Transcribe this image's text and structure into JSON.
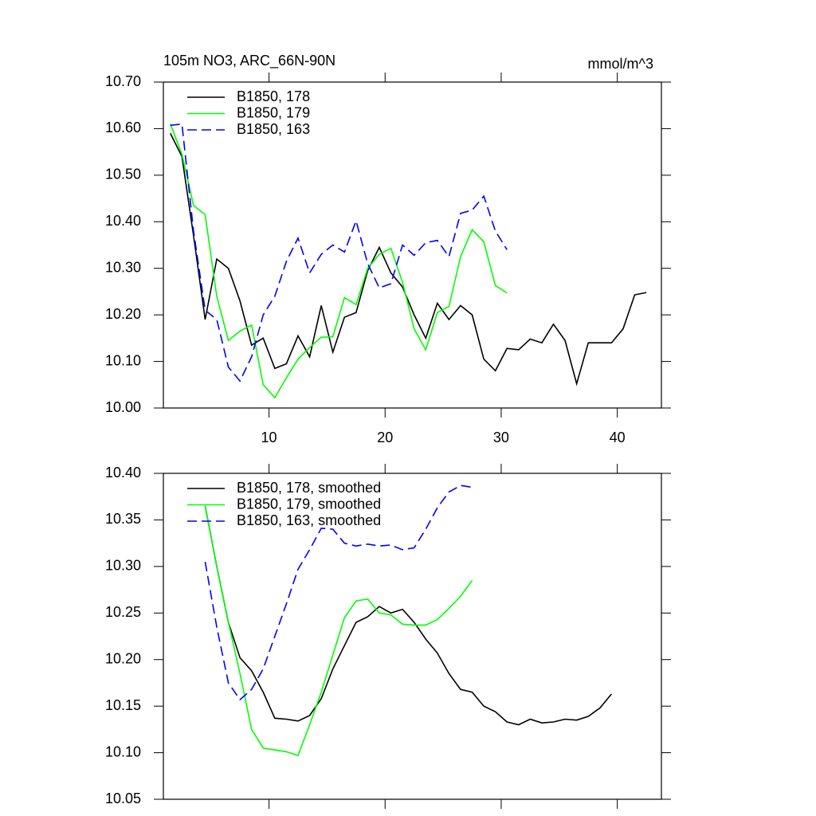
{
  "chart_data": [
    {
      "type": "line",
      "title": "105m NO3, ARC_66N-90N",
      "subtitle": "mmol/m^3",
      "xlim": [
        0.9,
        43.8
      ],
      "xticks": [
        10,
        20,
        30,
        40
      ],
      "ylim": [
        10.0,
        10.7
      ],
      "yticks": [
        {
          "value": 10.0,
          "label": "10.00"
        },
        {
          "value": 10.1,
          "label": "10.10"
        },
        {
          "value": 10.2,
          "label": "10.20"
        },
        {
          "value": 10.3,
          "label": "10.30"
        },
        {
          "value": 10.4,
          "label": "10.40"
        },
        {
          "value": 10.5,
          "label": "10.50"
        },
        {
          "value": 10.6,
          "label": "10.60"
        },
        {
          "value": 10.7,
          "label": "10.70"
        }
      ],
      "legend": "upper left",
      "series": [
        {
          "name": "B1850, 178",
          "color": "#000000",
          "dash": false,
          "x": [
            1.5,
            2.5,
            3.5,
            4.5,
            5.5,
            6.5,
            7.5,
            8.5,
            9.5,
            10.5,
            11.5,
            12.5,
            13.5,
            14.5,
            15.5,
            16.5,
            17.5,
            18.5,
            19.5,
            20.5,
            21.5,
            22.5,
            23.5,
            24.5,
            25.5,
            26.5,
            27.5,
            28.5,
            29.5,
            30.5,
            31.5,
            32.5,
            33.5,
            34.5,
            35.5,
            36.5,
            37.5,
            38.5,
            39.5,
            40.5,
            41.5,
            42.5
          ],
          "values": [
            10.59,
            10.54,
            10.37,
            10.19,
            10.32,
            10.3,
            10.23,
            10.135,
            10.15,
            10.085,
            10.095,
            10.155,
            10.11,
            10.22,
            10.12,
            10.195,
            10.205,
            10.295,
            10.345,
            10.29,
            10.26,
            10.2,
            10.15,
            10.225,
            10.19,
            10.22,
            10.2,
            10.105,
            10.08,
            10.128,
            10.125,
            10.148,
            10.14,
            10.18,
            10.145,
            10.052,
            10.14,
            10.14,
            10.14,
            10.17,
            10.243,
            10.248
          ]
        },
        {
          "name": "B1850, 179",
          "color": "#00ff00",
          "dash": false,
          "x": [
            1.5,
            2.5,
            3.5,
            4.5,
            5.5,
            6.5,
            7.5,
            8.5,
            9.5,
            10.5,
            11.5,
            12.5,
            13.5,
            14.5,
            15.5,
            16.5,
            17.5,
            18.5,
            19.5,
            20.5,
            21.5,
            22.5,
            23.5,
            24.5,
            25.5,
            26.5,
            27.5,
            28.5,
            29.5,
            30.5
          ],
          "values": [
            10.61,
            10.545,
            10.435,
            10.415,
            10.24,
            10.145,
            10.165,
            10.178,
            10.05,
            10.022,
            10.065,
            10.105,
            10.13,
            10.152,
            10.153,
            10.237,
            10.222,
            10.3,
            10.33,
            10.343,
            10.27,
            10.17,
            10.125,
            10.205,
            10.218,
            10.325,
            10.383,
            10.357,
            10.263,
            10.247
          ]
        },
        {
          "name": "B1850, 163",
          "color": "#0000ff",
          "dash": true,
          "x": [
            1.5,
            2.5,
            3.5,
            4.5,
            5.5,
            6.5,
            7.5,
            8.5,
            9.5,
            10.5,
            11.5,
            12.5,
            13.5,
            14.5,
            15.5,
            16.5,
            17.5,
            18.5,
            19.5,
            20.5,
            21.5,
            22.5,
            23.5,
            24.5,
            25.5,
            26.5,
            27.5,
            28.5,
            29.5,
            30.5
          ],
          "values": [
            10.607,
            10.61,
            10.38,
            10.21,
            10.19,
            10.088,
            10.058,
            10.11,
            10.2,
            10.24,
            10.315,
            10.365,
            10.29,
            10.33,
            10.35,
            10.335,
            10.402,
            10.31,
            10.258,
            10.267,
            10.35,
            10.328,
            10.355,
            10.36,
            10.325,
            10.418,
            10.425,
            10.455,
            10.38,
            10.34
          ]
        }
      ]
    },
    {
      "type": "line",
      "xlim": [
        0.9,
        43.8
      ],
      "xticks": [
        10,
        20,
        30,
        40
      ],
      "ylim": [
        10.05,
        10.4
      ],
      "yticks": [
        {
          "value": 10.05,
          "label": "10.05"
        },
        {
          "value": 10.1,
          "label": "10.10"
        },
        {
          "value": 10.15,
          "label": "10.15"
        },
        {
          "value": 10.2,
          "label": "10.20"
        },
        {
          "value": 10.25,
          "label": "10.25"
        },
        {
          "value": 10.3,
          "label": "10.30"
        },
        {
          "value": 10.35,
          "label": "10.35"
        },
        {
          "value": 10.4,
          "label": "10.40"
        }
      ],
      "legend": "upper left",
      "series": [
        {
          "name": "B1850, 178, smoothed",
          "color": "#000000",
          "dash": false,
          "x": [
            4.5,
            5.5,
            6.5,
            7.5,
            8.5,
            9.5,
            10.5,
            11.5,
            12.5,
            13.5,
            14.5,
            15.5,
            16.5,
            17.5,
            18.5,
            19.5,
            20.5,
            21.5,
            22.5,
            23.5,
            24.5,
            25.5,
            26.5,
            27.5,
            28.5,
            29.5,
            30.5,
            31.5,
            32.5,
            33.5,
            34.5,
            35.5,
            36.5,
            37.5,
            38.5,
            39.5
          ],
          "values": [
            10.365,
            10.3,
            10.24,
            10.202,
            10.188,
            10.165,
            10.137,
            10.136,
            10.134,
            10.14,
            10.158,
            10.19,
            10.215,
            10.24,
            10.246,
            10.257,
            10.25,
            10.254,
            10.24,
            10.222,
            10.207,
            10.185,
            10.168,
            10.165,
            10.15,
            10.144,
            10.133,
            10.13,
            10.136,
            10.132,
            10.133,
            10.136,
            10.135,
            10.139,
            10.148,
            10.163
          ]
        },
        {
          "name": "B1850, 179, smoothed",
          "color": "#00ff00",
          "dash": false,
          "x": [
            4.5,
            5.5,
            6.5,
            7.5,
            8.5,
            9.5,
            10.5,
            11.5,
            12.5,
            13.5,
            14.5,
            15.5,
            16.5,
            17.5,
            18.5,
            19.5,
            20.5,
            21.5,
            22.5,
            23.5,
            24.5,
            25.5,
            26.5,
            27.5
          ],
          "values": [
            10.365,
            10.3,
            10.24,
            10.185,
            10.125,
            10.105,
            10.103,
            10.101,
            10.097,
            10.13,
            10.165,
            10.205,
            10.245,
            10.263,
            10.265,
            10.25,
            10.248,
            10.238,
            10.237,
            10.237,
            10.243,
            10.255,
            10.268,
            10.285
          ]
        },
        {
          "name": "B1850, 163, smoothed",
          "color": "#0000ff",
          "dash": true,
          "x": [
            4.5,
            5.5,
            6.5,
            7.5,
            8.5,
            9.5,
            10.5,
            11.5,
            12.5,
            13.5,
            14.5,
            15.5,
            16.5,
            17.5,
            18.5,
            19.5,
            20.5,
            21.5,
            22.5,
            23.5,
            24.5,
            25.5,
            26.5,
            27.5
          ],
          "values": [
            10.305,
            10.235,
            10.175,
            10.157,
            10.168,
            10.19,
            10.225,
            10.26,
            10.297,
            10.318,
            10.341,
            10.34,
            10.325,
            10.322,
            10.324,
            10.322,
            10.323,
            10.318,
            10.32,
            10.34,
            10.363,
            10.38,
            10.387,
            10.385
          ]
        }
      ]
    }
  ]
}
